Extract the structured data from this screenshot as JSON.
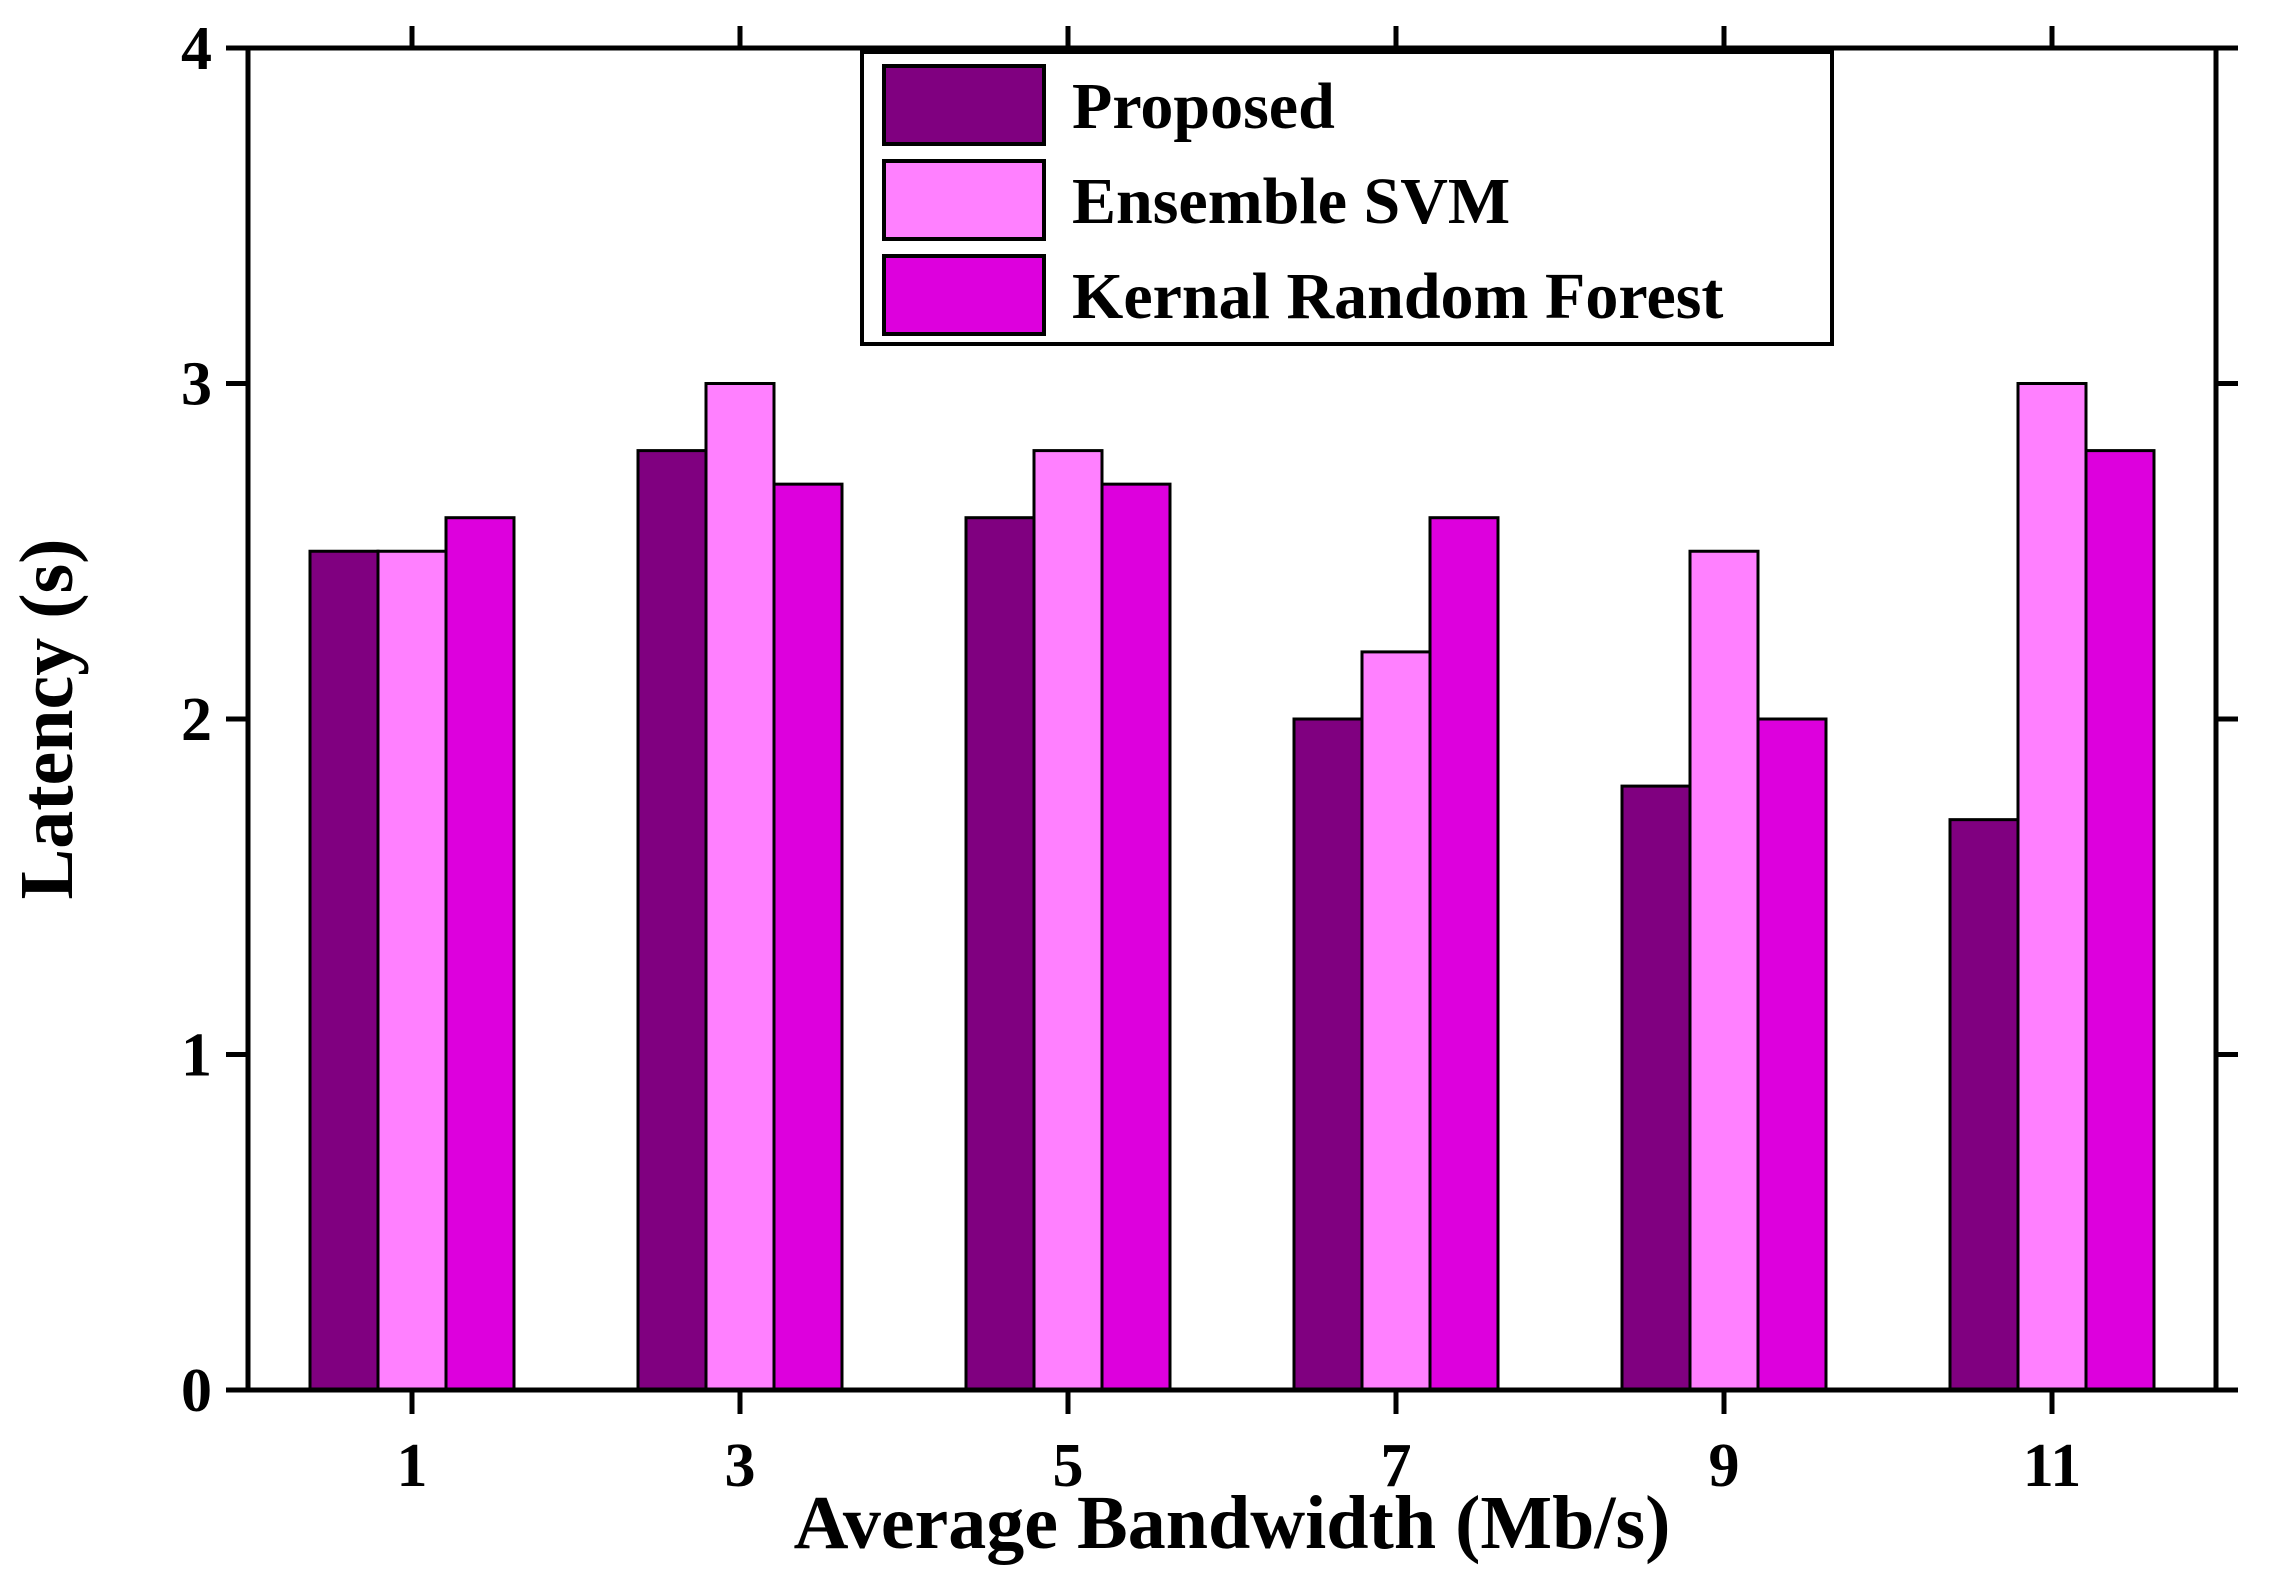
{
  "colors": {
    "background": "#ffffff",
    "axis": "#000000",
    "bar_stroke": "#000000",
    "legend_border": "#000000"
  },
  "chart_data": {
    "type": "bar",
    "title": "",
    "xlabel": "Average Bandwidth (Mb/s)",
    "ylabel": "Latency (s)",
    "categories": [
      "1",
      "3",
      "5",
      "7",
      "9",
      "11"
    ],
    "ylim": [
      0,
      4
    ],
    "yticks": [
      "0",
      "1",
      "2",
      "3",
      "4"
    ],
    "grid": false,
    "legend_position": "top-center",
    "series": [
      {
        "name": "Proposed",
        "color": "#800080",
        "values": [
          2.5,
          2.8,
          2.6,
          2.0,
          1.8,
          1.7
        ]
      },
      {
        "name": "Ensemble SVM",
        "color": "#ff80ff",
        "values": [
          2.5,
          3.0,
          2.8,
          2.2,
          2.5,
          3.0
        ]
      },
      {
        "name": "Kernal Random Forest",
        "color": "#dd00dd",
        "values": [
          2.6,
          2.7,
          2.7,
          2.6,
          2.0,
          2.8
        ]
      }
    ]
  }
}
